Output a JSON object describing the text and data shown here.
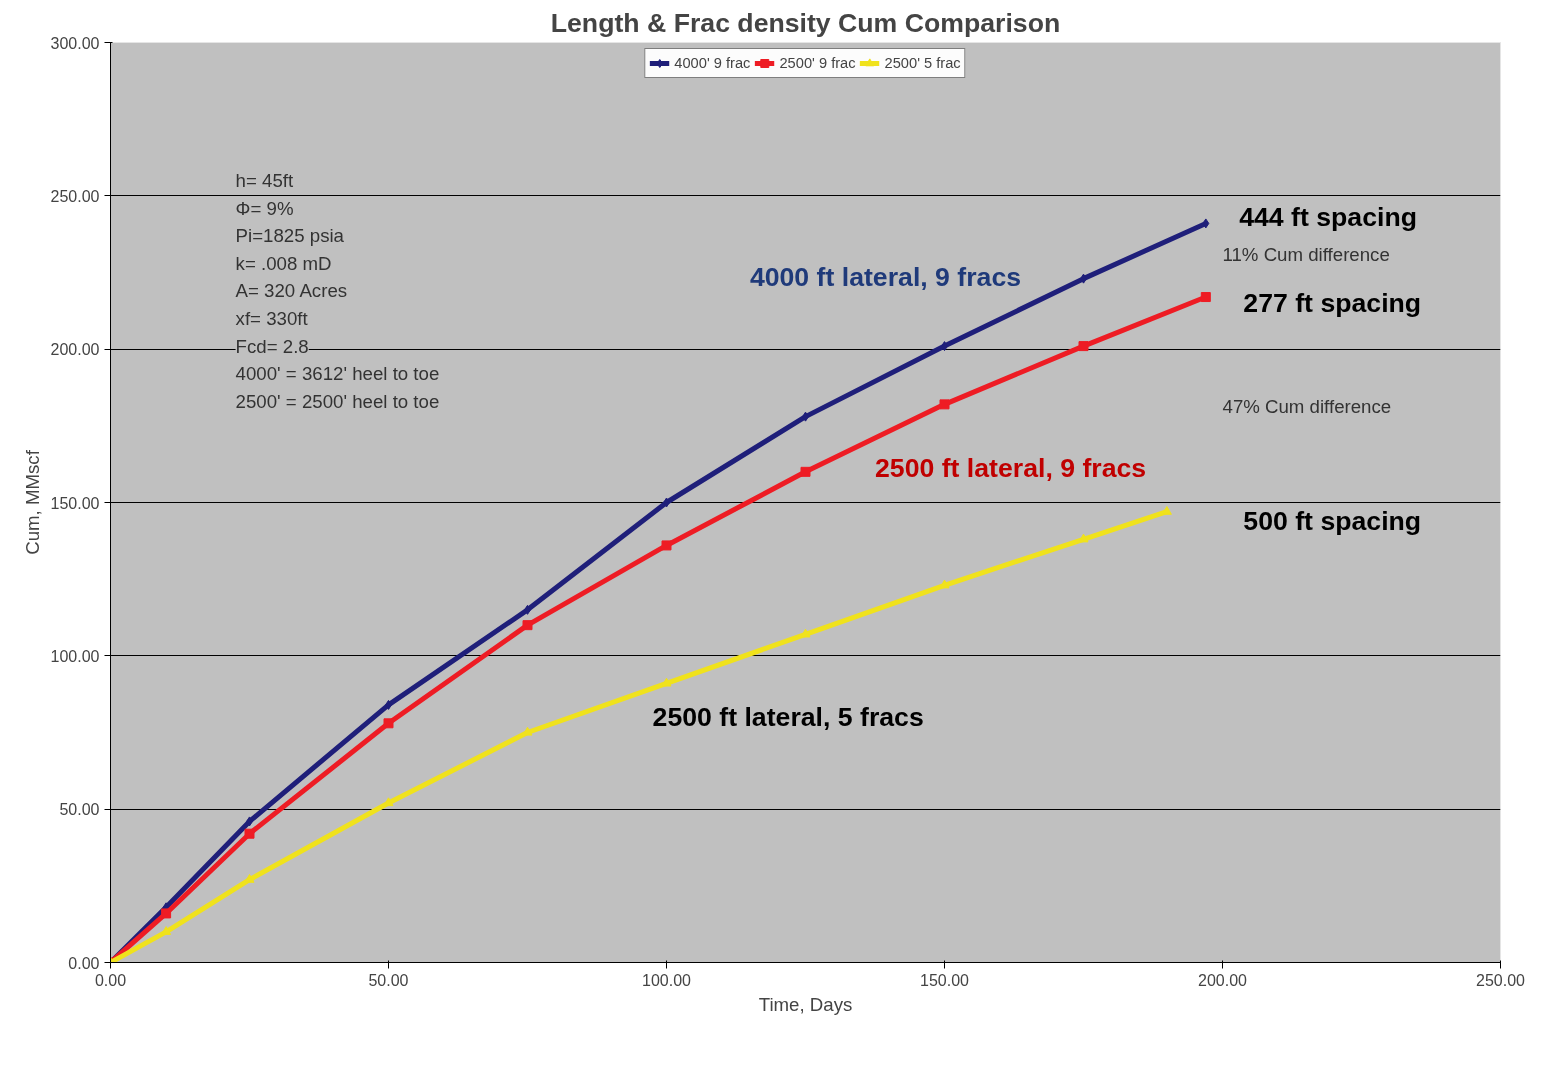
{
  "chart_data": {
    "type": "line",
    "title": "Length & Frac density Cum Comparison",
    "xlabel": "Time, Days",
    "ylabel": "Cum, MMscf",
    "series": [
      {
        "name": "4000' 9 frac",
        "color": "#1f1f7a",
        "marker": "diamond",
        "x": [
          0,
          10,
          25,
          50,
          75,
          100,
          125,
          150,
          175,
          197
        ],
        "values": [
          0,
          18,
          46,
          84,
          115,
          150,
          178,
          201,
          223,
          241
        ]
      },
      {
        "name": "2500' 9 frac",
        "color": "#ee1c24",
        "marker": "square",
        "x": [
          0,
          10,
          25,
          50,
          75,
          100,
          125,
          150,
          175,
          197
        ],
        "values": [
          0,
          16,
          42,
          78,
          110,
          136,
          160,
          182,
          201,
          217
        ]
      },
      {
        "name": "2500' 5 frac",
        "color": "#f0e21c",
        "marker": "triangle",
        "x": [
          0,
          10,
          25,
          50,
          75,
          100,
          125,
          150,
          175,
          190
        ],
        "values": [
          0,
          10,
          27,
          52,
          75,
          91,
          107,
          123,
          138,
          147
        ]
      }
    ],
    "xlim": [
      0,
      250
    ],
    "ylim": [
      0,
      300
    ],
    "xticks": [
      {
        "value": 0,
        "label": "0.00"
      },
      {
        "value": 50,
        "label": "50.00"
      },
      {
        "value": 100,
        "label": "100.00"
      },
      {
        "value": 150,
        "label": "150.00"
      },
      {
        "value": 200,
        "label": "200.00"
      },
      {
        "value": 250,
        "label": "250.00"
      }
    ],
    "yticks": [
      {
        "value": 0,
        "label": "0.00"
      },
      {
        "value": 50,
        "label": "50.00"
      },
      {
        "value": 100,
        "label": "100.00"
      },
      {
        "value": 150,
        "label": "150.00"
      },
      {
        "value": 200,
        "label": "200.00"
      },
      {
        "value": 250,
        "label": "250.00"
      },
      {
        "value": 300,
        "label": "300.00"
      }
    ],
    "grid": "y",
    "legend": "top",
    "line_style": "solid",
    "annotations": [
      "h= 45ft",
      "Φ= 9%",
      "Pi=1825 psia",
      "k= .008 mD",
      "A= 320 Acres",
      "xf= 330ft",
      "Fcd= 2.8",
      "4000' = 3612' heel to toe",
      "2500' = 2500' heel to toe",
      "4000 ft lateral, 9 fracs",
      "2500 ft lateral, 9 fracs",
      "2500 ft lateral, 5 fracs",
      "444 ft spacing",
      "11% Cum difference",
      "277 ft spacing",
      "47% Cum difference",
      "500 ft spacing"
    ]
  }
}
